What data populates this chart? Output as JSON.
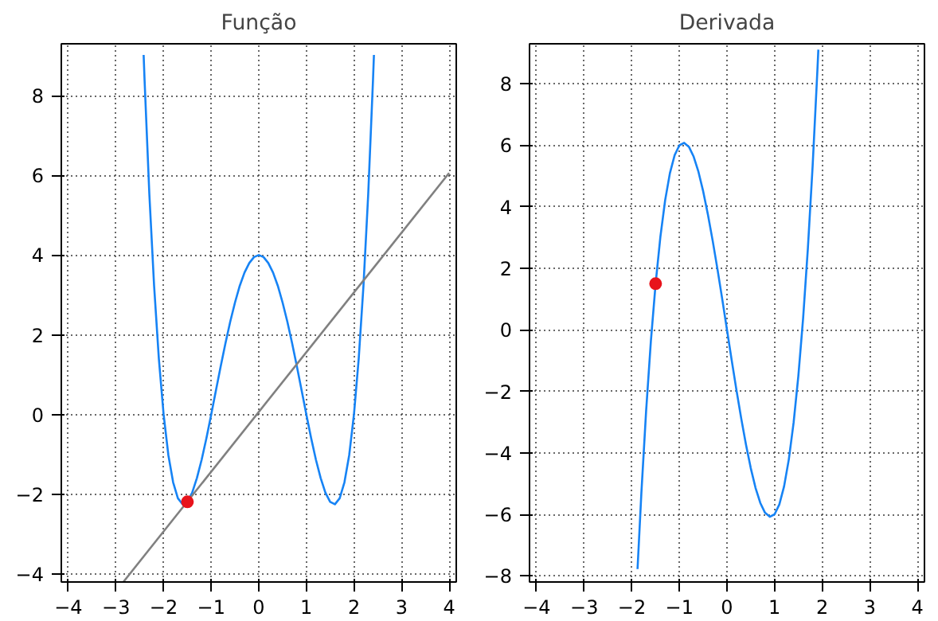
{
  "chart_data": [
    {
      "type": "line",
      "title": "Função",
      "xlim": [
        -4.15,
        4.15
      ],
      "ylim": [
        -4.2,
        9.3
      ],
      "xticks": [
        -4,
        -3,
        -2,
        -1,
        0,
        1,
        2,
        3,
        4
      ],
      "yticks": [
        -4,
        -2,
        0,
        2,
        4,
        6,
        8
      ],
      "grid": true,
      "series": [
        {
          "color": "#1683f5",
          "x": [
            -2.42,
            -2.4,
            -2.3,
            -2.2,
            -2.1,
            -2.0,
            -1.9,
            -1.8,
            -1.7,
            -1.6,
            -1.5,
            -1.4,
            -1.3,
            -1.2,
            -1.1,
            -1.0,
            -0.9,
            -0.8,
            -0.7,
            -0.6,
            -0.5,
            -0.4,
            -0.3,
            -0.2,
            -0.1,
            0,
            0.1,
            0.2,
            0.3,
            0.4,
            0.5,
            0.6,
            0.7,
            0.8,
            0.9,
            1.0,
            1.1,
            1.2,
            1.3,
            1.4,
            1.5,
            1.6,
            1.7,
            1.8,
            1.9,
            2.0,
            2.1,
            2.2,
            2.3,
            2.4,
            2.42
          ],
          "values": [
            9.02,
            8.38,
            5.53,
            3.23,
            1.4,
            0,
            -1.02,
            -1.7,
            -2.1,
            -2.25,
            -2.19,
            -1.96,
            -1.59,
            -1.13,
            -0.59,
            0,
            0.61,
            1.21,
            1.79,
            2.33,
            2.81,
            3.23,
            3.56,
            3.8,
            3.95,
            4,
            3.95,
            3.8,
            3.56,
            3.23,
            2.81,
            2.33,
            1.79,
            1.21,
            0.61,
            0,
            -0.59,
            -1.13,
            -1.59,
            -1.96,
            -2.19,
            -2.25,
            -2.1,
            -1.7,
            -1.02,
            0,
            1.4,
            3.23,
            5.53,
            8.38,
            9.02
          ]
        },
        {
          "color": "#808080",
          "x": [
            -2.84,
            4
          ],
          "values": [
            -4.19,
            6.06
          ]
        },
        {
          "type": "scatter",
          "color": "#e8141c",
          "x": [
            -1.5
          ],
          "values": [
            -2.19
          ]
        }
      ]
    },
    {
      "type": "line",
      "title": "Derivada",
      "xlim": [
        -4.15,
        4.15
      ],
      "ylim": [
        -8.2,
        9.3
      ],
      "xticks": [
        -4,
        -3,
        -2,
        -1,
        0,
        1,
        2,
        3,
        4
      ],
      "yticks": [
        -8,
        -6,
        -4,
        -2,
        0,
        2,
        4,
        6,
        8
      ],
      "grid": true,
      "series": [
        {
          "color": "#1683f5",
          "x": [
            -1.88,
            -1.8,
            -1.7,
            -1.6,
            -1.5,
            -1.4,
            -1.3,
            -1.2,
            -1.1,
            -1.0,
            -0.9,
            -0.8,
            -0.7,
            -0.6,
            -0.5,
            -0.4,
            -0.3,
            -0.2,
            -0.1,
            0,
            0.1,
            0.2,
            0.3,
            0.4,
            0.5,
            0.6,
            0.7,
            0.8,
            0.9,
            1.0,
            1.1,
            1.2,
            1.3,
            1.4,
            1.5,
            1.6,
            1.7,
            1.8,
            1.9,
            1.92
          ],
          "values": [
            -7.78,
            -5.33,
            -2.65,
            -0.38,
            1.5,
            3.02,
            4.21,
            5.09,
            5.68,
            6,
            6.08,
            5.95,
            5.63,
            5.14,
            4.5,
            3.74,
            2.89,
            1.97,
            1.0,
            0,
            -1.0,
            -1.97,
            -2.89,
            -3.74,
            -4.5,
            -5.14,
            -5.63,
            -5.95,
            -6.08,
            -6,
            -5.68,
            -5.09,
            -4.21,
            -3.02,
            -1.5,
            0.38,
            2.65,
            5.33,
            8.44,
            9.11
          ]
        },
        {
          "type": "scatter",
          "color": "#e8141c",
          "x": [
            -1.5
          ],
          "values": [
            1.5
          ]
        }
      ]
    }
  ]
}
